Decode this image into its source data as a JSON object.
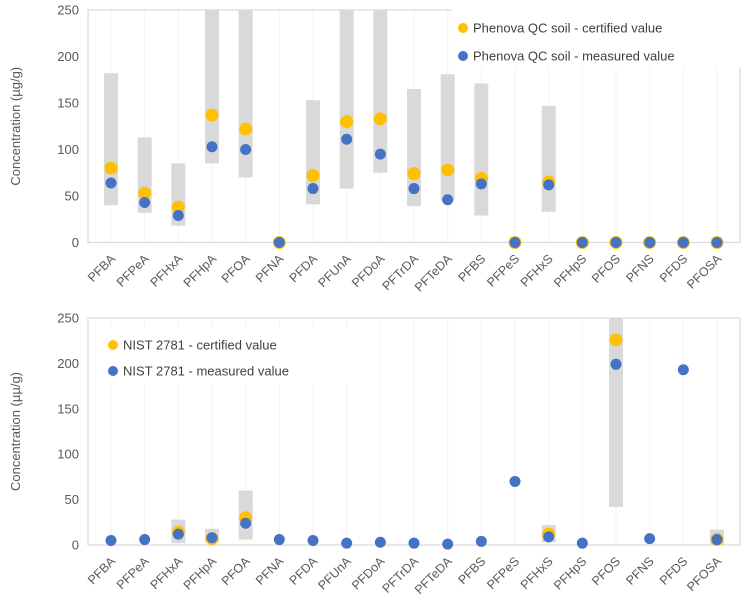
{
  "colors": {
    "certified": "#FFC000",
    "measured": "#4472C4",
    "range_bar": "#D9D9D9",
    "plot_border": "#D9D9D9",
    "gridline": "#F2F2F2",
    "axis_text": "#595959",
    "legend_text": "#404040"
  },
  "chart_data": [
    {
      "type": "scatter",
      "ylabel": "Concentration (µg/g)",
      "ylim": [
        0,
        250
      ],
      "yticks": [
        0,
        50,
        100,
        150,
        200,
        250
      ],
      "grid": "faint vertical gridline per category, no horizontal gridlines, light gray plot border",
      "legend_position": "top-right-inside",
      "categories": [
        "PFBA",
        "PFPeA",
        "PFHxA",
        "PFHpA",
        "PFOA",
        "PFNA",
        "PFDA",
        "PFUnA",
        "PFDoA",
        "PFTrDA",
        "PFTeDA",
        "PFBS",
        "PFPeS",
        "PFHxS",
        "PFHpS",
        "PFOS",
        "PFNS",
        "PFDS",
        "PFOSA"
      ],
      "series": [
        {
          "name": "Phenova QC soil - certified value",
          "color": "#FFC000",
          "values": [
            80,
            53,
            38,
            137,
            122,
            0,
            72,
            130,
            133,
            74,
            78,
            69,
            0,
            65,
            0,
            0,
            0,
            0,
            0
          ]
        },
        {
          "name": "Phenova QC soil - measured value",
          "color": "#4472C4",
          "values": [
            64,
            43,
            29,
            103,
            100,
            0,
            58,
            111,
            95,
            58,
            46,
            63,
            0,
            62,
            0,
            0,
            0,
            0,
            0
          ]
        }
      ],
      "range_bars": {
        "color": "#D9D9D9",
        "note": "gray high-low band per category; null = no band; high of 250 = band clipped at axis top",
        "values": [
          [
            40,
            182
          ],
          [
            32,
            113
          ],
          [
            18,
            85
          ],
          [
            85,
            250
          ],
          [
            70,
            250
          ],
          null,
          [
            41,
            153
          ],
          [
            58,
            250
          ],
          [
            75,
            250
          ],
          [
            39,
            165
          ],
          [
            45,
            181
          ],
          [
            29,
            171
          ],
          null,
          [
            33,
            147
          ],
          null,
          null,
          null,
          null,
          null
        ]
      }
    },
    {
      "type": "scatter",
      "ylabel": "Concentration (µµ/g)",
      "ylim": [
        0,
        250
      ],
      "yticks": [
        0,
        50,
        100,
        150,
        200,
        250
      ],
      "grid": "faint vertical gridline per category, no horizontal gridlines, light gray plot border",
      "legend_position": "top-left-inside",
      "categories": [
        "PFBA",
        "PFPeA",
        "PFHxA",
        "PFHpA",
        "PFOA",
        "PFNA",
        "PFDA",
        "PFUnA",
        "PFDoA",
        "PFTrDA",
        "PFTeDA",
        "PFBS",
        "PFPeS",
        "PFHxS",
        "PFHpS",
        "PFOS",
        "PFNS",
        "PFDS",
        "PFOSA"
      ],
      "series": [
        {
          "name": "NIST 2781 - certified value",
          "color": "#FFC000",
          "values": [
            null,
            null,
            14,
            7,
            30,
            null,
            null,
            null,
            null,
            null,
            null,
            null,
            null,
            12,
            null,
            226,
            null,
            null,
            6
          ]
        },
        {
          "name": "NIST 2781 - measured value",
          "color": "#4472C4",
          "values": [
            5,
            6,
            12,
            8,
            24,
            6,
            5,
            2,
            3,
            2,
            1,
            4,
            70,
            9,
            2,
            199,
            7,
            193,
            6
          ]
        }
      ],
      "range_bars": {
        "color": "#D9D9D9",
        "note": "gray high-low band per category; null = no band; high of 250 = band clipped at axis top",
        "values": [
          null,
          null,
          [
            2,
            28
          ],
          [
            3,
            18
          ],
          [
            6,
            60
          ],
          null,
          null,
          null,
          null,
          null,
          null,
          null,
          null,
          [
            3,
            22
          ],
          null,
          [
            42,
            250
          ],
          null,
          null,
          [
            0,
            17
          ]
        ]
      }
    }
  ]
}
